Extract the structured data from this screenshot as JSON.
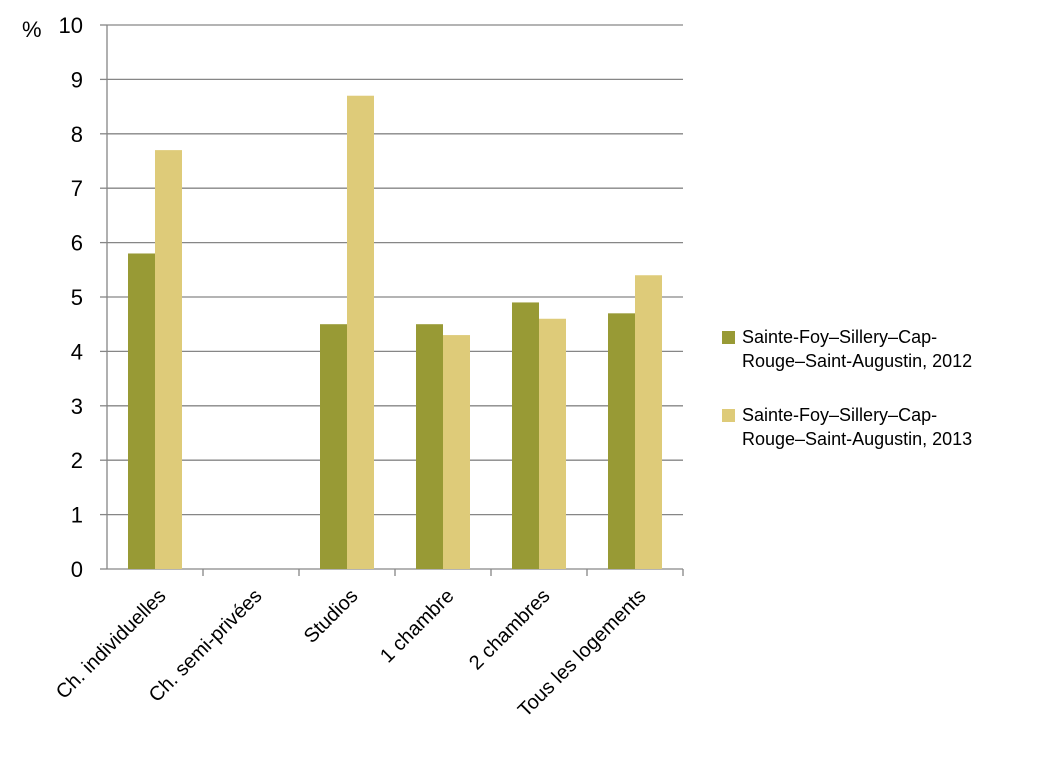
{
  "chart_data": {
    "type": "bar",
    "ylabel": "%",
    "ylim": [
      0,
      10
    ],
    "yticks": [
      "0",
      "1",
      "2",
      "3",
      "4",
      "5",
      "6",
      "7",
      "8",
      "9",
      "10"
    ],
    "grid": true,
    "legend_position": "right",
    "categories": [
      "Ch. individuelles",
      "Ch. semi-privées",
      "Studios",
      "1 chambre",
      "2 chambres",
      "Tous les logements"
    ],
    "series": [
      {
        "name": "Sainte-Foy–Sillery–Cap-Rouge–Saint-Augustin, 2012",
        "legend_lines": [
          "Sainte-Foy–Sillery–Cap-",
          "Rouge–Saint-Augustin, 2012"
        ],
        "color": "#989A35",
        "values": [
          5.8,
          null,
          4.5,
          4.5,
          4.9,
          4.7
        ]
      },
      {
        "name": "Sainte-Foy–Sillery–Cap-Rouge–Saint-Augustin, 2013",
        "legend_lines": [
          "Sainte-Foy–Sillery–Cap-",
          "Rouge–Saint-Augustin, 2013"
        ],
        "color": "#DECB79",
        "values": [
          7.7,
          null,
          8.7,
          4.3,
          4.6,
          5.4
        ]
      }
    ]
  }
}
